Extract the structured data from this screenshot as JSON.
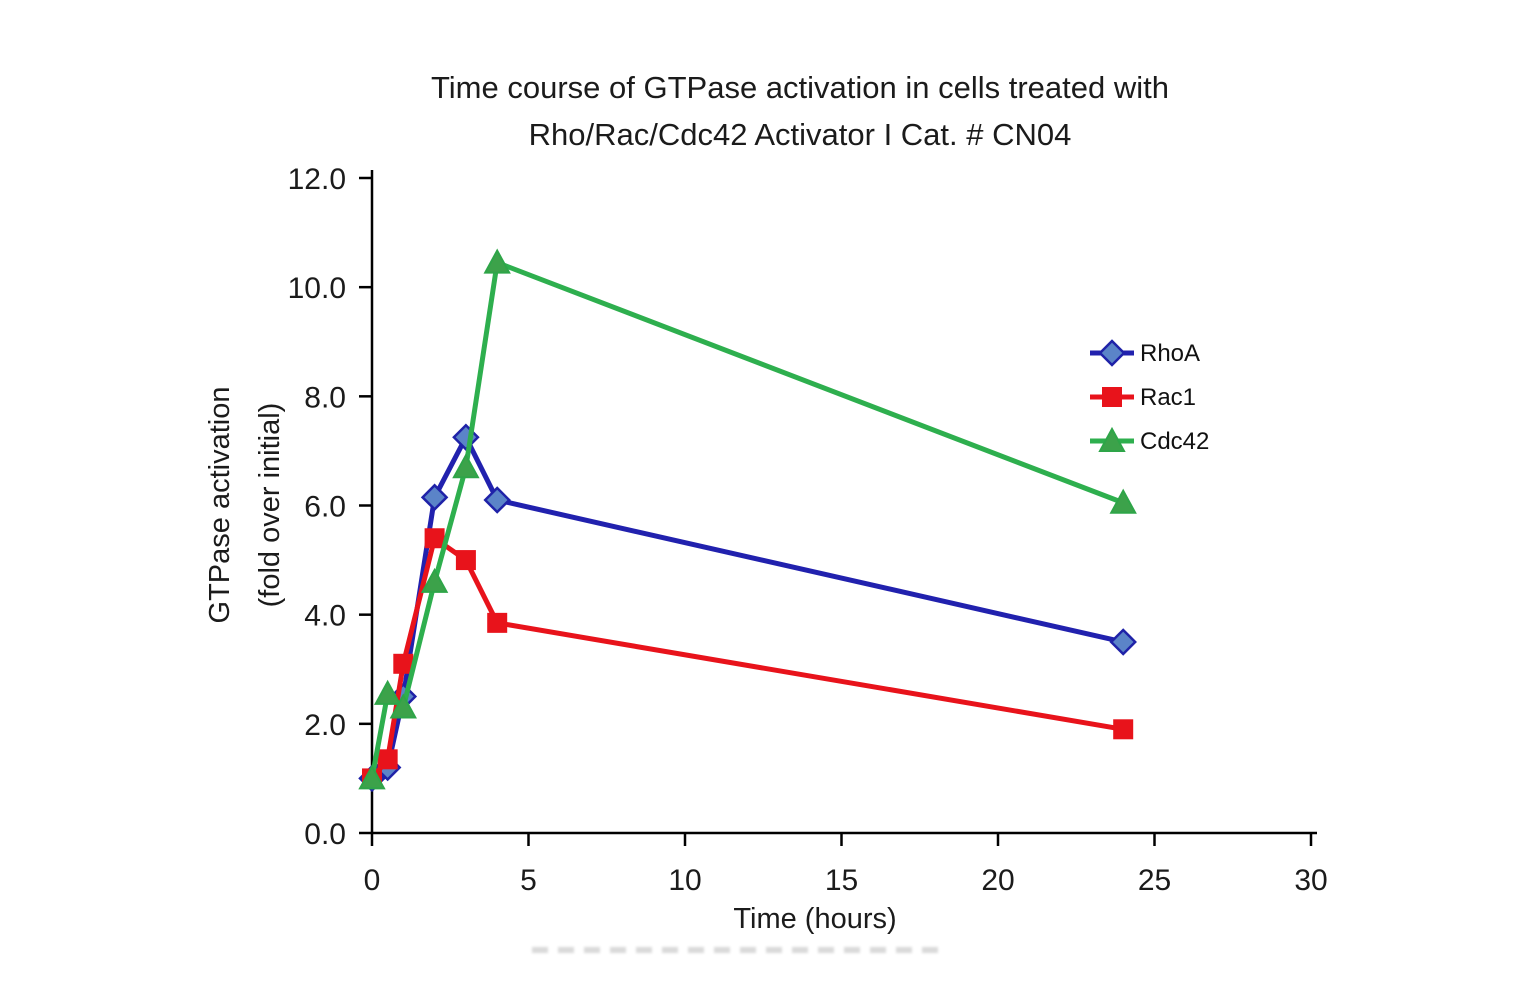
{
  "chart_data": {
    "type": "line",
    "title": "Time course of GTPase activation in cells treated with Rho/Rac/Cdc42 Activator I Cat. # CN04",
    "title_lines": [
      "Time course of GTPase activation in cells treated with",
      "Rho/Rac/Cdc42 Activator I Cat. # CN04"
    ],
    "xlabel": "Time (hours)",
    "ylabel": "GTPase activation (fold over initial)",
    "ylabel_lines": [
      "GTPase activation",
      "(fold over initial)"
    ],
    "xlim": [
      0,
      30
    ],
    "ylim": [
      0,
      12
    ],
    "x_ticks": [
      0,
      5,
      10,
      15,
      20,
      25,
      30
    ],
    "x_tick_labels": [
      "0",
      "5",
      "10",
      "15",
      "20",
      "25",
      "30"
    ],
    "y_ticks": [
      0,
      2,
      4,
      6,
      8,
      10,
      12
    ],
    "y_tick_labels": [
      "0.0",
      "2.0",
      "4.0",
      "6.0",
      "8.0",
      "10.0",
      "12.0"
    ],
    "grid": false,
    "legend_position": "inside-right",
    "x": [
      0,
      0.5,
      1,
      2,
      3,
      4,
      24
    ],
    "series": [
      {
        "name": "RhoA",
        "marker": "diamond",
        "line_color": "#2121AE",
        "marker_fill": "#5B84C8",
        "marker_stroke": "#1F22A8",
        "values": [
          1.0,
          1.2,
          2.5,
          6.15,
          7.25,
          6.1,
          3.5
        ]
      },
      {
        "name": "Rac1",
        "marker": "square",
        "line_color": "#E8131B",
        "marker_fill": "#E8131B",
        "marker_stroke": "#E8131B",
        "values": [
          1.0,
          1.35,
          3.1,
          5.4,
          5.0,
          3.85,
          1.9
        ]
      },
      {
        "name": "Cdc42",
        "marker": "triangle",
        "line_color": "#2EAF4E",
        "marker_fill": "#3CA24A",
        "marker_stroke": "#2EA548",
        "values": [
          1.0,
          2.55,
          2.3,
          4.6,
          6.7,
          10.45,
          6.05
        ]
      }
    ],
    "axis_color": "#000000",
    "text_color": "#1b1b1b"
  }
}
